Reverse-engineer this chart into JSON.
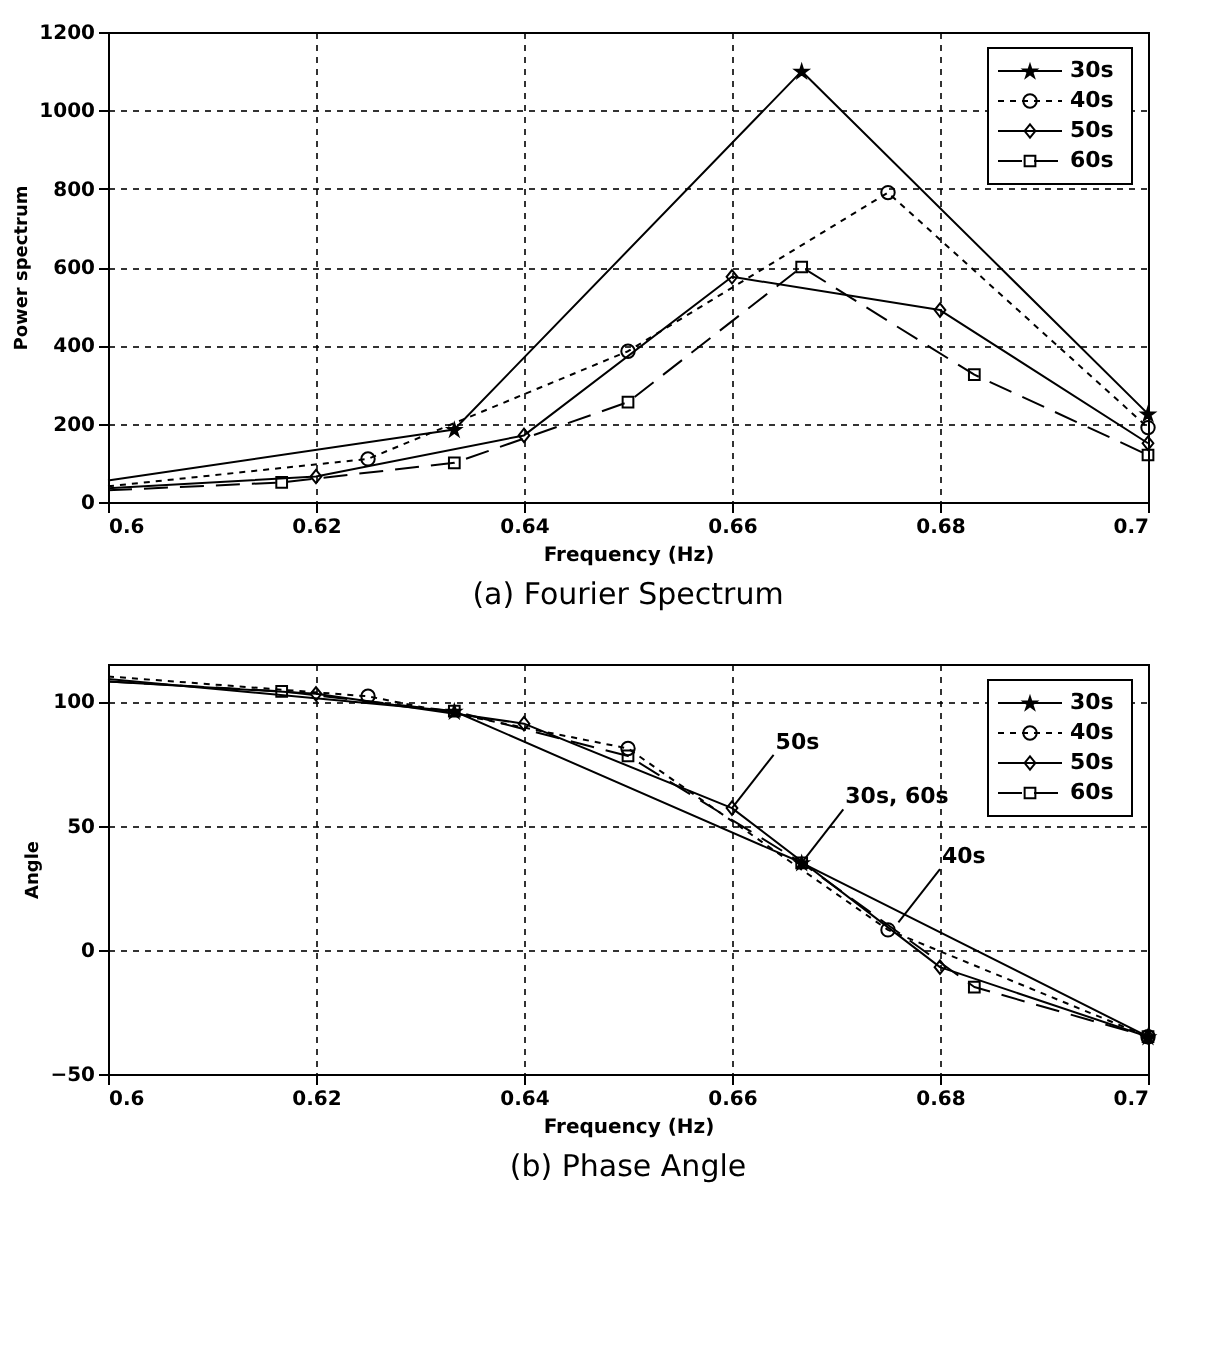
{
  "chart_data": [
    {
      "type": "line",
      "title": "(a) Fourier Spectrum",
      "xlabel": "Frequency (Hz)",
      "ylabel": "Power spectrum",
      "xlim": [
        0.6,
        0.7
      ],
      "xticks": [
        0.6,
        0.62,
        0.64,
        0.66,
        0.68,
        0.7
      ],
      "ylim": [
        0,
        1200
      ],
      "yticks": [
        0,
        200,
        400,
        600,
        800,
        1000,
        1200
      ],
      "grid": true,
      "legend": "top right",
      "series": [
        {
          "name": "30s",
          "color": "#000000",
          "marker": "star",
          "line_style": "solid",
          "x": [
            0.6,
            0.6333,
            0.6667,
            0.7
          ],
          "values": [
            55,
            185,
            1100,
            225
          ]
        },
        {
          "name": "40s",
          "color": "#000000",
          "marker": "circle",
          "line_style": "dotted",
          "x": [
            0.6,
            0.625,
            0.65,
            0.675,
            0.7
          ],
          "values": [
            40,
            110,
            385,
            790,
            190
          ]
        },
        {
          "name": "50s",
          "color": "#000000",
          "marker": "diamond",
          "line_style": "solid",
          "x": [
            0.6,
            0.62,
            0.64,
            0.66,
            0.68,
            0.7
          ],
          "values": [
            35,
            65,
            170,
            575,
            490,
            150
          ]
        },
        {
          "name": "60s",
          "color": "#000000",
          "marker": "square",
          "line_style": "dashed",
          "x": [
            0.6,
            0.6167,
            0.6333,
            0.65,
            0.6667,
            0.6833,
            0.7
          ],
          "values": [
            30,
            50,
            100,
            255,
            600,
            325,
            120
          ]
        }
      ]
    },
    {
      "type": "line",
      "title": "(b) Phase Angle",
      "xlabel": "Frequency (Hz)",
      "ylabel": "Angle",
      "xlim": [
        0.6,
        0.7
      ],
      "xticks": [
        0.6,
        0.62,
        0.64,
        0.66,
        0.68,
        0.7
      ],
      "ylim": [
        -50,
        115
      ],
      "yticks": [
        -50,
        0,
        50,
        100
      ],
      "grid": true,
      "legend": "top right",
      "series": [
        {
          "name": "30s",
          "color": "#000000",
          "marker": "star",
          "line_style": "solid",
          "x": [
            0.6,
            0.6333,
            0.6667,
            0.7
          ],
          "values": [
            109,
            96,
            35,
            -35
          ]
        },
        {
          "name": "40s",
          "color": "#000000",
          "marker": "circle",
          "line_style": "dotted",
          "x": [
            0.6,
            0.625,
            0.65,
            0.675,
            0.7
          ],
          "values": [
            110,
            102,
            81,
            8,
            -35
          ]
        },
        {
          "name": "50s",
          "color": "#000000",
          "marker": "diamond",
          "line_style": "solid",
          "x": [
            0.6,
            0.62,
            0.64,
            0.66,
            0.68,
            0.7
          ],
          "values": [
            108,
            103,
            91,
            57,
            -7,
            -35
          ]
        },
        {
          "name": "60s",
          "color": "#000000",
          "marker": "square",
          "line_style": "dashed",
          "x": [
            0.6,
            0.6167,
            0.6333,
            0.65,
            0.6667,
            0.6833,
            0.7
          ],
          "values": [
            108,
            104,
            96,
            78,
            35,
            -15,
            -35
          ]
        }
      ],
      "annotations": [
        {
          "text": "50s",
          "x": 0.66,
          "y": 57
        },
        {
          "text": "30s, 60s",
          "x": 0.6667,
          "y": 35
        },
        {
          "text": "40s",
          "x": 0.676,
          "y": 11
        }
      ]
    }
  ]
}
